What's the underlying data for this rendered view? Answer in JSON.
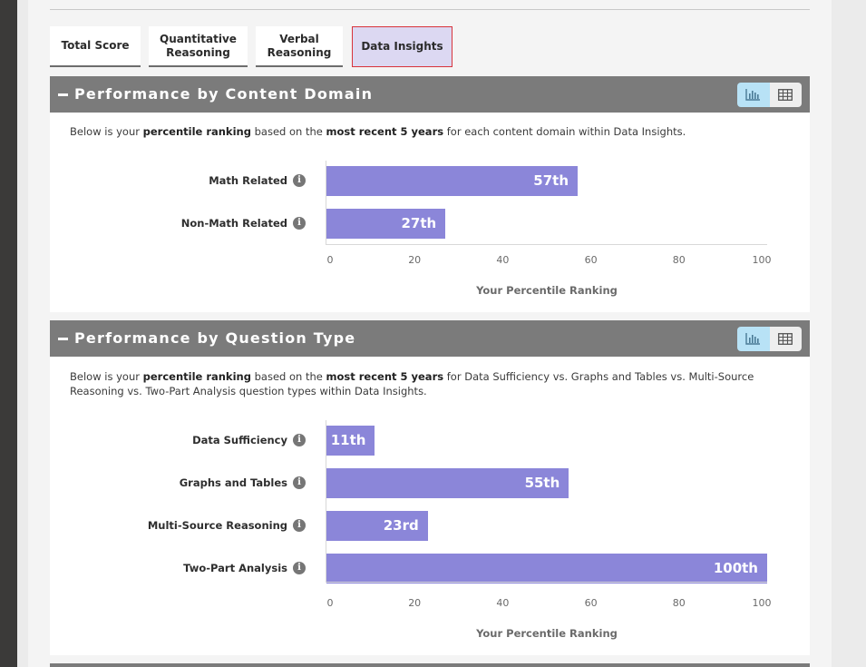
{
  "tabs": [
    {
      "label": "Total Score",
      "active": false
    },
    {
      "label": "Quantitative\nReasoning",
      "active": false
    },
    {
      "label": "Verbal\nReasoning",
      "active": false
    },
    {
      "label": "Data Insights",
      "active": true
    }
  ],
  "colors": {
    "bar": "#8b86d9",
    "header": "#7b7b7b",
    "active_tab_bg": "#dcd8f2",
    "active_tab_border": "#d8343b",
    "toggle_on": "#b8e2f6"
  },
  "panels": [
    {
      "title": "Performance by Content Domain",
      "view_toggle": {
        "chart_icon": "bar-chart-icon",
        "table_icon": "table-grid-icon",
        "selected": "chart"
      },
      "description": {
        "p1": "Below is your ",
        "b1": "percentile ranking",
        "p2": " based on the ",
        "b2": "most recent 5 years",
        "p3": " for each content domain within Data Insights."
      }
    },
    {
      "title": "Performance by Question Type",
      "view_toggle": {
        "chart_icon": "bar-chart-icon",
        "table_icon": "table-grid-icon",
        "selected": "chart"
      },
      "description": {
        "p1": "Below is your ",
        "b1": "percentile ranking",
        "p2": " based on the ",
        "b2": "most recent 5 years",
        "p3": " for Data Sufficiency vs. Graphs and Tables vs. Multi-Source Reasoning vs. Two-Part Analysis question types within Data Insights."
      }
    }
  ],
  "chart_data": [
    {
      "type": "bar",
      "orientation": "horizontal",
      "categories": [
        "Math Related",
        "Non-Math Related"
      ],
      "values": [
        57,
        27
      ],
      "value_labels": [
        "57th",
        "27th"
      ],
      "xlabel": "Your Percentile Ranking",
      "xlim": [
        0,
        100
      ],
      "xticks": [
        "0",
        "20",
        "40",
        "60",
        "80",
        "100"
      ],
      "info_icon": "info-icon"
    },
    {
      "type": "bar",
      "orientation": "horizontal",
      "categories": [
        "Data Sufficiency",
        "Graphs and Tables",
        "Multi-Source Reasoning",
        "Two-Part Analysis"
      ],
      "values": [
        11,
        55,
        23,
        100
      ],
      "value_labels": [
        "11th",
        "55th",
        "23rd",
        "100th"
      ],
      "xlabel": "Your Percentile Ranking",
      "xlim": [
        0,
        100
      ],
      "xticks": [
        "0",
        "20",
        "40",
        "60",
        "80",
        "100"
      ],
      "info_icon": "info-icon"
    }
  ]
}
